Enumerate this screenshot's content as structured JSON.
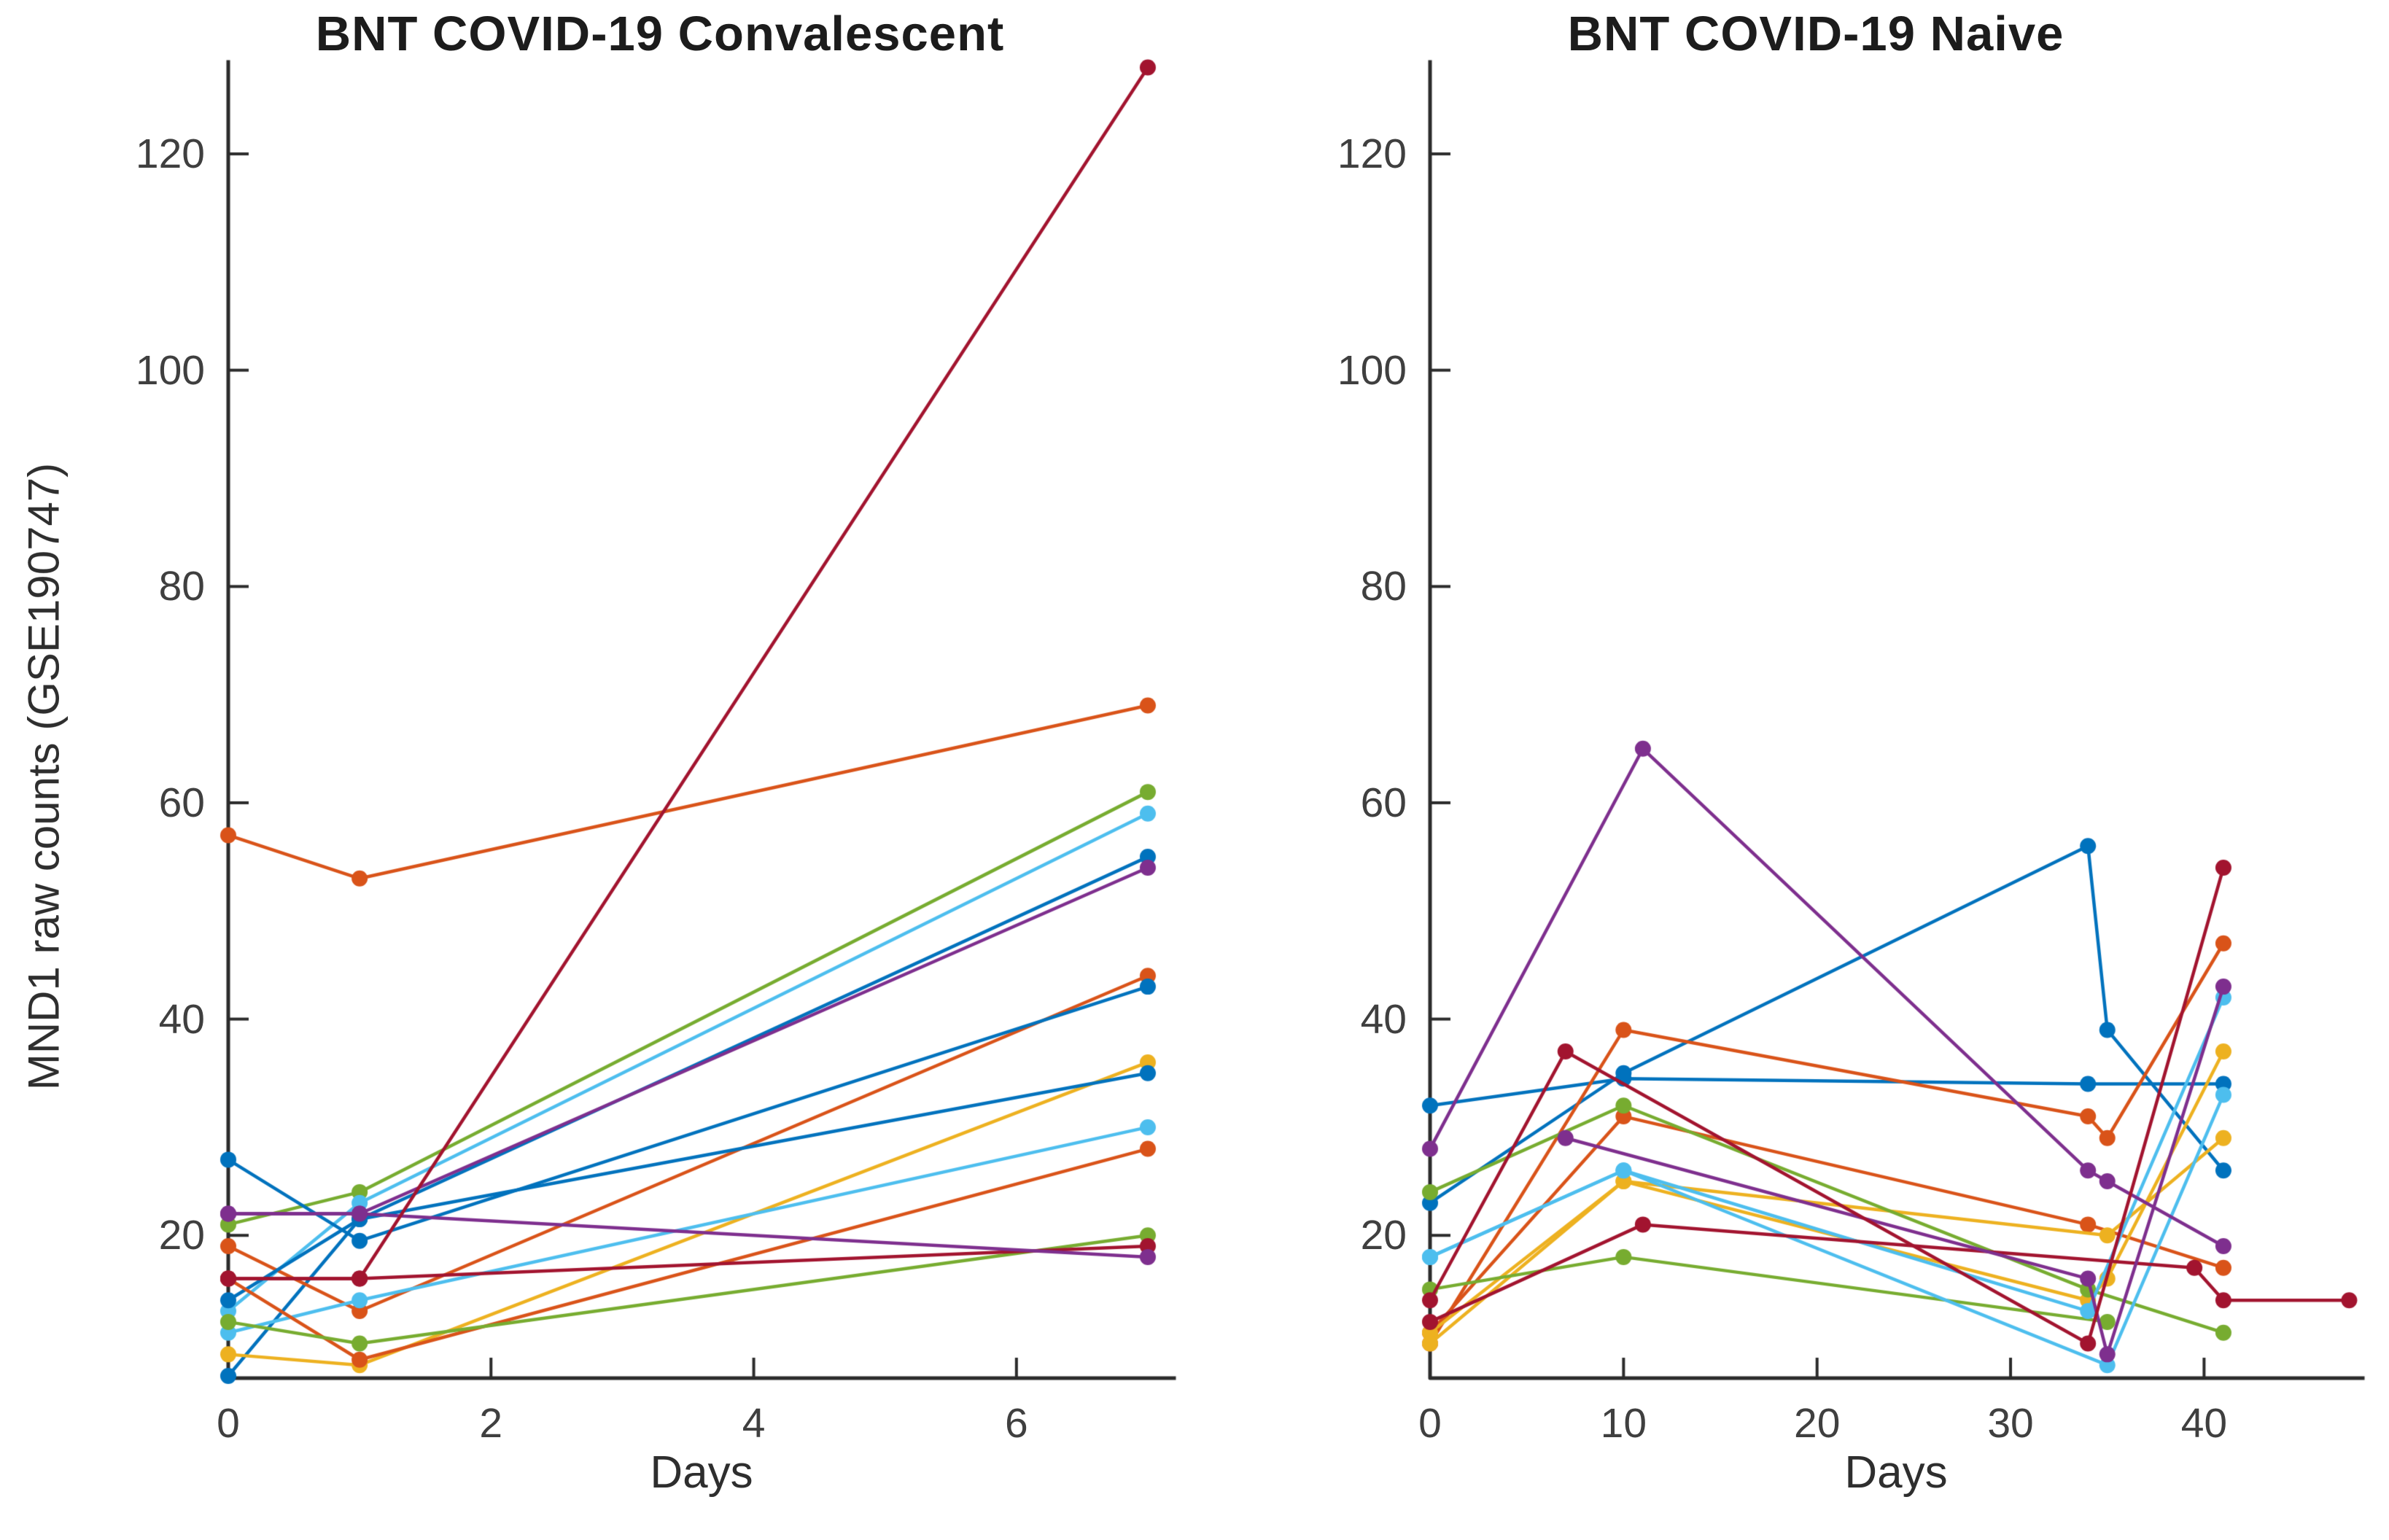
{
  "figure": {
    "background": "#ffffff",
    "axis_color": "#2b2b2b",
    "tick_label_color": "#3f3f3f"
  },
  "chart_data": [
    {
      "type": "line",
      "title": "BNT COVID-19 Convalescent",
      "xlabel": "Days",
      "ylabel": "MND1 raw counts (GSE190747)",
      "xlim": [
        0,
        7.2
      ],
      "ylim": [
        6.8,
        128.5
      ],
      "xticks": [
        0,
        2,
        4,
        6
      ],
      "yticks": [
        20,
        40,
        60,
        80,
        100,
        120
      ],
      "grid": false,
      "legend": "none",
      "marker": "circle",
      "series": [
        {
          "color": "#D95319",
          "x": [
            0,
            1,
            7
          ],
          "y": [
            57,
            53,
            69
          ]
        },
        {
          "color": "#77AC30",
          "x": [
            0,
            1,
            7
          ],
          "y": [
            21,
            24,
            61
          ]
        },
        {
          "color": "#4DBEEE",
          "x": [
            0,
            1,
            7
          ],
          "y": [
            13,
            23,
            59
          ]
        },
        {
          "color": "#0072BD",
          "x": [
            0,
            1,
            7
          ],
          "y": [
            7,
            21.5,
            55
          ]
        },
        {
          "color": "#7E2F8E",
          "x": [
            0,
            1,
            7
          ],
          "y": [
            22,
            22,
            54
          ]
        },
        {
          "color": "#D95319",
          "x": [
            0,
            1,
            7
          ],
          "y": [
            19,
            13,
            44
          ]
        },
        {
          "color": "#0072BD",
          "x": [
            0,
            1,
            7
          ],
          "y": [
            27,
            19.5,
            43
          ]
        },
        {
          "color": "#EDB120",
          "x": [
            0,
            1,
            7
          ],
          "y": [
            9,
            8,
            36
          ]
        },
        {
          "color": "#0072BD",
          "x": [
            0,
            1,
            7
          ],
          "y": [
            14,
            21.5,
            35
          ]
        },
        {
          "color": "#4DBEEE",
          "x": [
            0,
            1,
            7
          ],
          "y": [
            11,
            14,
            30
          ]
        },
        {
          "color": "#D95319",
          "x": [
            0,
            1,
            7
          ],
          "y": [
            16,
            8.5,
            28
          ]
        },
        {
          "color": "#77AC30",
          "x": [
            0,
            1,
            7
          ],
          "y": [
            12,
            10,
            20
          ]
        },
        {
          "color": "#A2142F",
          "x": [
            0,
            1,
            7
          ],
          "y": [
            16,
            16,
            19
          ]
        },
        {
          "color": "#7E2F8E",
          "x": [
            0,
            1,
            7
          ],
          "y": [
            22,
            22,
            18
          ]
        },
        {
          "color": "#A2142F",
          "x": [
            0,
            1,
            7
          ],
          "y": [
            16,
            16,
            128
          ]
        }
      ]
    },
    {
      "type": "line",
      "title": "BNT COVID-19 Naive",
      "xlabel": "Days",
      "ylabel": "",
      "xlim": [
        0,
        48.2
      ],
      "ylim": [
        6.8,
        128.5
      ],
      "xticks": [
        0,
        10,
        20,
        30,
        40
      ],
      "yticks": [
        20,
        40,
        60,
        80,
        100,
        120
      ],
      "grid": false,
      "legend": "none",
      "marker": "circle",
      "series": [
        {
          "color": "#0072BD",
          "x": [
            0,
            10,
            34,
            41
          ],
          "y": [
            32,
            34.5,
            34,
            34
          ]
        },
        {
          "color": "#0072BD",
          "x": [
            0,
            10,
            34,
            35,
            41
          ],
          "y": [
            23,
            35,
            56,
            39,
            26
          ]
        },
        {
          "color": "#D95319",
          "x": [
            0,
            10,
            34,
            35,
            41
          ],
          "y": [
            10,
            39,
            31,
            29,
            47
          ]
        },
        {
          "color": "#D95319",
          "x": [
            0,
            10,
            34,
            41
          ],
          "y": [
            11,
            31,
            21,
            17
          ]
        },
        {
          "color": "#EDB120",
          "x": [
            0,
            10,
            34,
            35,
            41
          ],
          "y": [
            11,
            25,
            14,
            16,
            37
          ]
        },
        {
          "color": "#EDB120",
          "x": [
            0,
            10,
            35,
            41
          ],
          "y": [
            10,
            25,
            20,
            29
          ]
        },
        {
          "color": "#77AC30",
          "x": [
            0,
            10,
            34,
            41
          ],
          "y": [
            24,
            32,
            15,
            11
          ]
        },
        {
          "color": "#77AC30",
          "x": [
            0,
            10,
            35
          ],
          "y": [
            15,
            18,
            12
          ]
        },
        {
          "color": "#4DBEEE",
          "x": [
            0,
            10,
            34,
            41
          ],
          "y": [
            18,
            26,
            13,
            42
          ]
        },
        {
          "color": "#4DBEEE",
          "x": [
            0,
            10,
            35,
            41
          ],
          "y": [
            18,
            26,
            8,
            33
          ]
        },
        {
          "color": "#A2142F",
          "x": [
            0,
            11,
            39.5,
            41,
            47.5
          ],
          "y": [
            12,
            21,
            17,
            14,
            14
          ]
        },
        {
          "color": "#7E2F8E",
          "x": [
            7,
            34,
            35,
            41
          ],
          "y": [
            29,
            16,
            9,
            43
          ]
        },
        {
          "color": "#7E2F8E",
          "x": [
            0,
            11,
            34,
            35,
            41
          ],
          "y": [
            28,
            65,
            26,
            25,
            19
          ]
        },
        {
          "color": "#A2142F",
          "x": [
            0,
            7,
            34,
            41
          ],
          "y": [
            14,
            37,
            10,
            54
          ]
        }
      ]
    }
  ]
}
